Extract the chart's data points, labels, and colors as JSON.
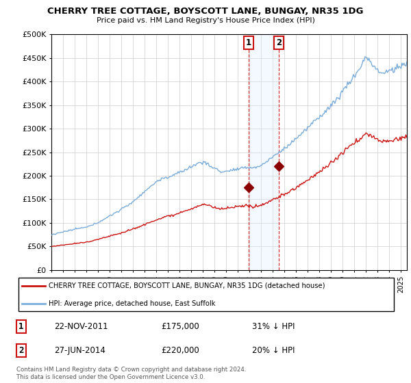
{
  "title": "CHERRY TREE COTTAGE, BOYSCOTT LANE, BUNGAY, NR35 1DG",
  "subtitle": "Price paid vs. HM Land Registry's House Price Index (HPI)",
  "ylabel_ticks": [
    "£0",
    "£50K",
    "£100K",
    "£150K",
    "£200K",
    "£250K",
    "£300K",
    "£350K",
    "£400K",
    "£450K",
    "£500K"
  ],
  "ytick_values": [
    0,
    50000,
    100000,
    150000,
    200000,
    250000,
    300000,
    350000,
    400000,
    450000,
    500000
  ],
  "ylim": [
    0,
    500000
  ],
  "xlim_start": 1995.0,
  "xlim_end": 2025.5,
  "hpi_color": "#7aacdb",
  "price_color": "#cc1111",
  "transaction1_x": 2011.9,
  "transaction1_y": 175000,
  "transaction2_x": 2014.5,
  "transaction2_y": 220000,
  "marker_color": "#8b0000",
  "shade_color": "#ddeeff",
  "vline_color": "#cc1111",
  "legend_entry1": "CHERRY TREE COTTAGE, BOYSCOTT LANE, BUNGAY, NR35 1DG (detached house)",
  "legend_entry2": "HPI: Average price, detached house, East Suffolk",
  "note1_date": "22-NOV-2011",
  "note1_price": "£175,000",
  "note1_hpi": "31% ↓ HPI",
  "note2_date": "27-JUN-2014",
  "note2_price": "£220,000",
  "note2_hpi": "20% ↓ HPI",
  "footer": "Contains HM Land Registry data © Crown copyright and database right 2024.\nThis data is licensed under the Open Government Licence v3.0.",
  "background_color": "#ffffff",
  "grid_color": "#cccccc"
}
